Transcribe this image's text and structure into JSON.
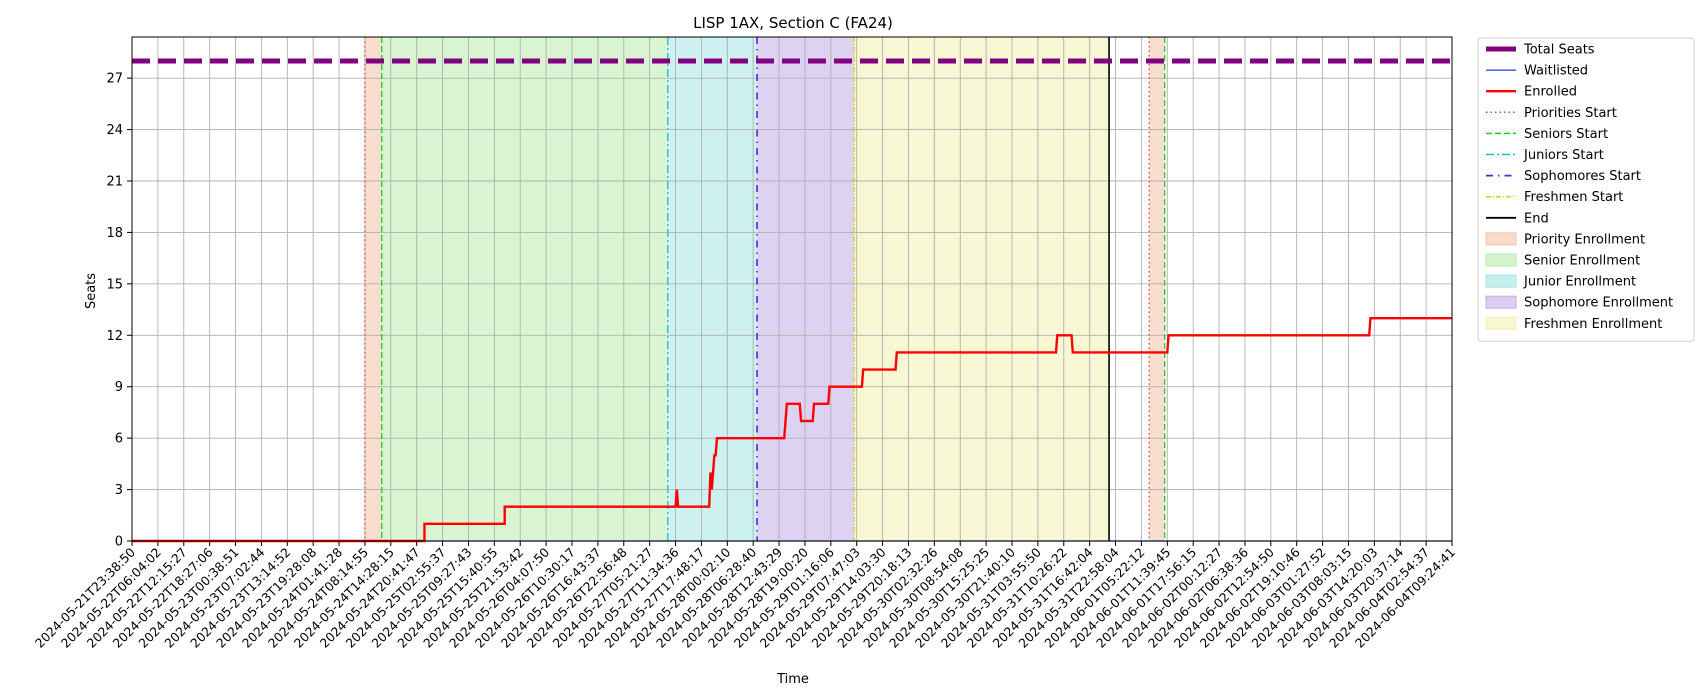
{
  "chart_data": {
    "type": "line",
    "title": "LISP 1AX, Section C (FA24)",
    "xlabel": "Time",
    "ylabel": "Seats",
    "ylim": [
      0,
      29.4
    ],
    "yticks": [
      0,
      3,
      6,
      9,
      12,
      15,
      18,
      21,
      24,
      27
    ],
    "grid": true,
    "legend_position": "outside-top-right",
    "x_tick_labels": [
      "2024-05-21T23:38:50",
      "2024-05-22T06:04:02",
      "2024-05-22T12:15:27",
      "2024-05-22T18:27:06",
      "2024-05-23T00:38:51",
      "2024-05-23T07:02:44",
      "2024-05-23T13:14:52",
      "2024-05-23T19:28:08",
      "2024-05-24T01:41:28",
      "2024-05-24T08:14:55",
      "2024-05-24T14:28:15",
      "2024-05-24T20:41:47",
      "2024-05-25T02:55:37",
      "2024-05-25T09:27:43",
      "2024-05-25T15:40:55",
      "2024-05-25T21:53:42",
      "2024-05-26T04:07:50",
      "2024-05-26T10:30:17",
      "2024-05-26T16:43:37",
      "2024-05-26T22:56:48",
      "2024-05-27T05:21:27",
      "2024-05-27T11:34:36",
      "2024-05-27T17:48:17",
      "2024-05-28T00:02:10",
      "2024-05-28T06:28:40",
      "2024-05-28T12:43:29",
      "2024-05-28T19:00:20",
      "2024-05-29T01:16:06",
      "2024-05-29T07:47:03",
      "2024-05-29T14:03:30",
      "2024-05-29T20:18:13",
      "2024-05-30T02:32:26",
      "2024-05-30T08:54:08",
      "2024-05-30T15:25:25",
      "2024-05-30T21:40:10",
      "2024-05-31T03:55:50",
      "2024-05-31T10:26:22",
      "2024-05-31T16:42:04",
      "2024-05-31T22:58:04",
      "2024-06-01T05:22:12",
      "2024-06-01T11:39:45",
      "2024-06-01T17:56:15",
      "2024-06-02T00:12:27",
      "2024-06-02T06:38:36",
      "2024-06-02T12:54:50",
      "2024-06-02T19:10:46",
      "2024-06-03T01:27:52",
      "2024-06-03T08:03:15",
      "2024-06-03T14:20:03",
      "2024-06-03T20:37:14",
      "2024-06-04T02:54:37",
      "2024-06-04T09:24:41"
    ],
    "periods": [
      {
        "name": "Priority Enrollment",
        "start": 9.0,
        "end": 9.65,
        "color": "#f4c3a8"
      },
      {
        "name": "Senior Enrollment",
        "start": 9.65,
        "end": 20.7,
        "color": "#b8ebaa"
      },
      {
        "name": "Junior Enrollment",
        "start": 20.7,
        "end": 24.15,
        "color": "#a4e4e4"
      },
      {
        "name": "Sophomore Enrollment",
        "start": 24.15,
        "end": 27.9,
        "color": "#c3ade8"
      },
      {
        "name": "Freshmen Enrollment",
        "start": 27.9,
        "end": 37.75,
        "color": "#f1f1b0"
      },
      {
        "name": "Priority Enrollment",
        "start": 39.3,
        "end": 39.9,
        "color": "#f4c3a8"
      }
    ],
    "vlines": [
      {
        "name": "Priorities Start",
        "x": 9.0,
        "color": "#e24a2c",
        "dash": "1.5,3",
        "width": 1.3
      },
      {
        "name": "Seniors Start",
        "x": 9.65,
        "color": "#22cc22",
        "dash": "6,3",
        "width": 1.3
      },
      {
        "name": "Juniors Start",
        "x": 20.7,
        "color": "#11c2c8",
        "dash": "8,3,2,3",
        "width": 1.3
      },
      {
        "name": "Sophomores Start",
        "x": 24.15,
        "color": "#5522dd",
        "dash": "7,5,1.5,5",
        "width": 1.6
      },
      {
        "name": "Freshmen Start",
        "x": 27.9,
        "color": "#d6cf1a",
        "dash": "5,2,1,2",
        "width": 1.3
      },
      {
        "name": "End",
        "x": 37.75,
        "color": "#000000",
        "dash": "",
        "width": 1.6
      },
      {
        "name": "Priorities Start",
        "x": 39.3,
        "color": "#e24a2c",
        "dash": "1.5,3",
        "width": 1.3
      },
      {
        "name": "Seniors Start",
        "x": 39.9,
        "color": "#22cc22",
        "dash": "6,3",
        "width": 1.3
      }
    ],
    "series": [
      {
        "name": "Total Seats",
        "color": "#800080",
        "style": "dashed-thick",
        "x": [
          0,
          51
        ],
        "y": [
          28,
          28
        ]
      },
      {
        "name": "Waitlisted",
        "color": "#1f3fe0",
        "style": "solid-thin",
        "x": [
          0,
          51
        ],
        "y": [
          0,
          0
        ]
      },
      {
        "name": "Enrolled",
        "color": "#ff0000",
        "style": "solid-thick",
        "x": [
          0,
          11.3,
          11.3,
          14.4,
          14.4,
          21.0,
          21.05,
          21.1,
          21.15,
          22.3,
          22.35,
          22.4,
          22.45,
          22.5,
          22.55,
          22.6,
          22.65,
          22.7,
          25.2,
          25.25,
          25.3,
          25.8,
          25.85,
          26.3,
          26.35,
          26.9,
          26.95,
          28.2,
          28.25,
          29.5,
          29.55,
          35.7,
          35.75,
          36.3,
          36.35,
          40.0,
          40.05,
          47.8,
          47.85,
          51.0
        ],
        "y": [
          0,
          0,
          1,
          1,
          2,
          2,
          3,
          2,
          2,
          2,
          4,
          3,
          4,
          5,
          5,
          6,
          6,
          6,
          6,
          7,
          8,
          8,
          7,
          7,
          8,
          8,
          9,
          9,
          10,
          10,
          11,
          11,
          12,
          12,
          11,
          11,
          12,
          12,
          13,
          13
        ]
      }
    ],
    "legend": [
      {
        "label": "Total Seats",
        "kind": "line",
        "color": "#800080",
        "dash": "",
        "width": 5
      },
      {
        "label": "Waitlisted",
        "kind": "line",
        "color": "#1f3fe0",
        "dash": "",
        "width": 1.3
      },
      {
        "label": "Enrolled",
        "kind": "line",
        "color": "#ff0000",
        "dash": "",
        "width": 2.4
      },
      {
        "label": "Priorities Start",
        "kind": "line",
        "color": "#e24a2c",
        "dash": "1.5,3",
        "width": 1.5
      },
      {
        "label": "Seniors Start",
        "kind": "line",
        "color": "#22cc22",
        "dash": "6,3",
        "width": 1.5
      },
      {
        "label": "Juniors Start",
        "kind": "line",
        "color": "#11c2c8",
        "dash": "8,3,2,3",
        "width": 1.5
      },
      {
        "label": "Sophomores Start",
        "kind": "line",
        "color": "#5522dd",
        "dash": "7,5,1.5,5",
        "width": 1.8
      },
      {
        "label": "Freshmen Start",
        "kind": "line",
        "color": "#d6cf1a",
        "dash": "5,2,1,2",
        "width": 1.5
      },
      {
        "label": "End",
        "kind": "line",
        "color": "#000000",
        "dash": "",
        "width": 1.8
      },
      {
        "label": "Priority Enrollment",
        "kind": "patch",
        "color": "#f4c3a8"
      },
      {
        "label": "Senior Enrollment",
        "kind": "patch",
        "color": "#b8ebaa"
      },
      {
        "label": "Junior Enrollment",
        "kind": "patch",
        "color": "#a4e4e4"
      },
      {
        "label": "Sophomore Enrollment",
        "kind": "patch",
        "color": "#c3ade8"
      },
      {
        "label": "Freshmen Enrollment",
        "kind": "patch",
        "color": "#f1f1b0"
      }
    ]
  }
}
